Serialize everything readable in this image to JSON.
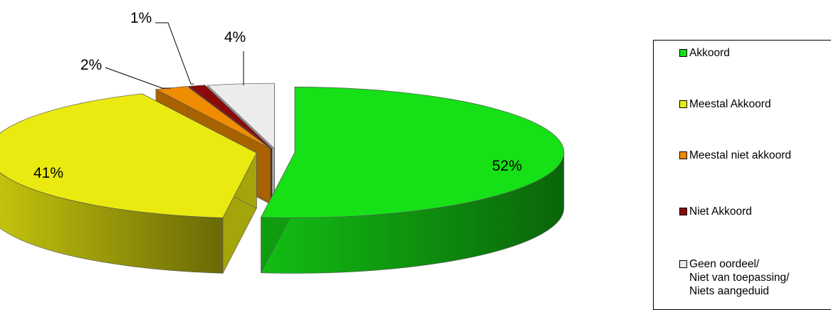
{
  "chart_data": {
    "type": "pie",
    "style": "3d-exploded",
    "categories": [
      "Akkoord",
      "Meestal Akkoord",
      "Meestal niet akkoord",
      "Niet Akkoord",
      "Geen oordeel/ Niet van toepassing/ Niets aangeduid"
    ],
    "values": [
      52,
      41,
      2,
      1,
      4
    ],
    "data_labels": [
      "52%",
      "41%",
      "2%",
      "1%",
      "4%"
    ],
    "colors": [
      "#16e016",
      "#eaea10",
      "#f08c00",
      "#8c0a0a",
      "#ececec"
    ],
    "legend_position": "right",
    "legend": [
      {
        "lines": [
          "Akkoord"
        ]
      },
      {
        "lines": [
          "Meestal Akkoord"
        ]
      },
      {
        "lines": [
          "Meestal niet akkoord"
        ]
      },
      {
        "lines": [
          "Niet Akkoord"
        ]
      },
      {
        "lines": [
          "Geen oordeel/",
          "Niet van toepassing/",
          "Niets aangeduid"
        ]
      }
    ]
  }
}
